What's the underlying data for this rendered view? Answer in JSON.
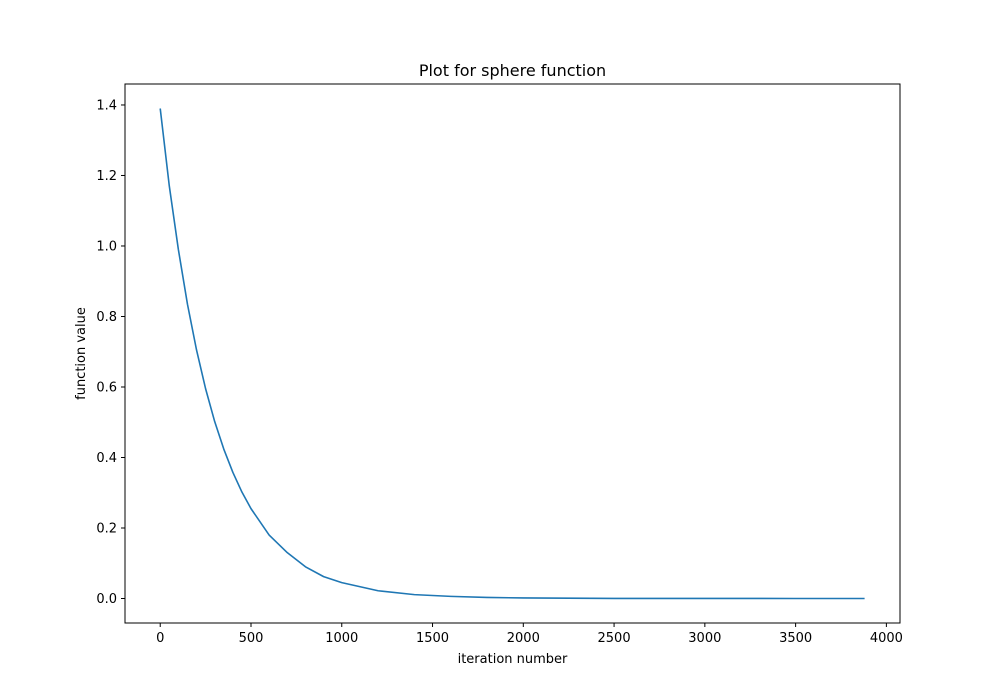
{
  "chart_data": {
    "type": "line",
    "title": "Plot for sphere function",
    "xlabel": "iteration number",
    "ylabel": "function value",
    "xlim": [
      -194,
      4075
    ],
    "ylim": [
      -0.0695,
      1.4595
    ],
    "x_ticks": [
      0,
      500,
      1000,
      1500,
      2000,
      2500,
      3000,
      3500,
      4000
    ],
    "y_ticks": [
      0.0,
      0.2,
      0.4,
      0.6,
      0.8,
      1.0,
      1.2,
      1.4
    ],
    "x_tick_labels": [
      "0",
      "500",
      "1000",
      "1500",
      "2000",
      "2500",
      "3000",
      "3500",
      "4000"
    ],
    "y_tick_labels": [
      "0.0",
      "0.2",
      "0.4",
      "0.6",
      "0.8",
      "1.0",
      "1.2",
      "1.4"
    ],
    "grid": false,
    "series": [
      {
        "color": "#1f77b4",
        "x": [
          0,
          50,
          100,
          150,
          200,
          250,
          300,
          350,
          400,
          450,
          500,
          600,
          700,
          800,
          900,
          1000,
          1200,
          1400,
          1600,
          1800,
          2000,
          2500,
          3000,
          3500,
          3880
        ],
        "y": [
          1.39,
          1.17,
          0.99,
          0.835,
          0.705,
          0.595,
          0.502,
          0.424,
          0.358,
          0.302,
          0.255,
          0.18,
          0.13,
          0.09,
          0.062,
          0.045,
          0.022,
          0.011,
          0.006,
          0.003,
          0.0015,
          0.0003,
          0.0001,
          0.0,
          0.0
        ]
      }
    ]
  }
}
